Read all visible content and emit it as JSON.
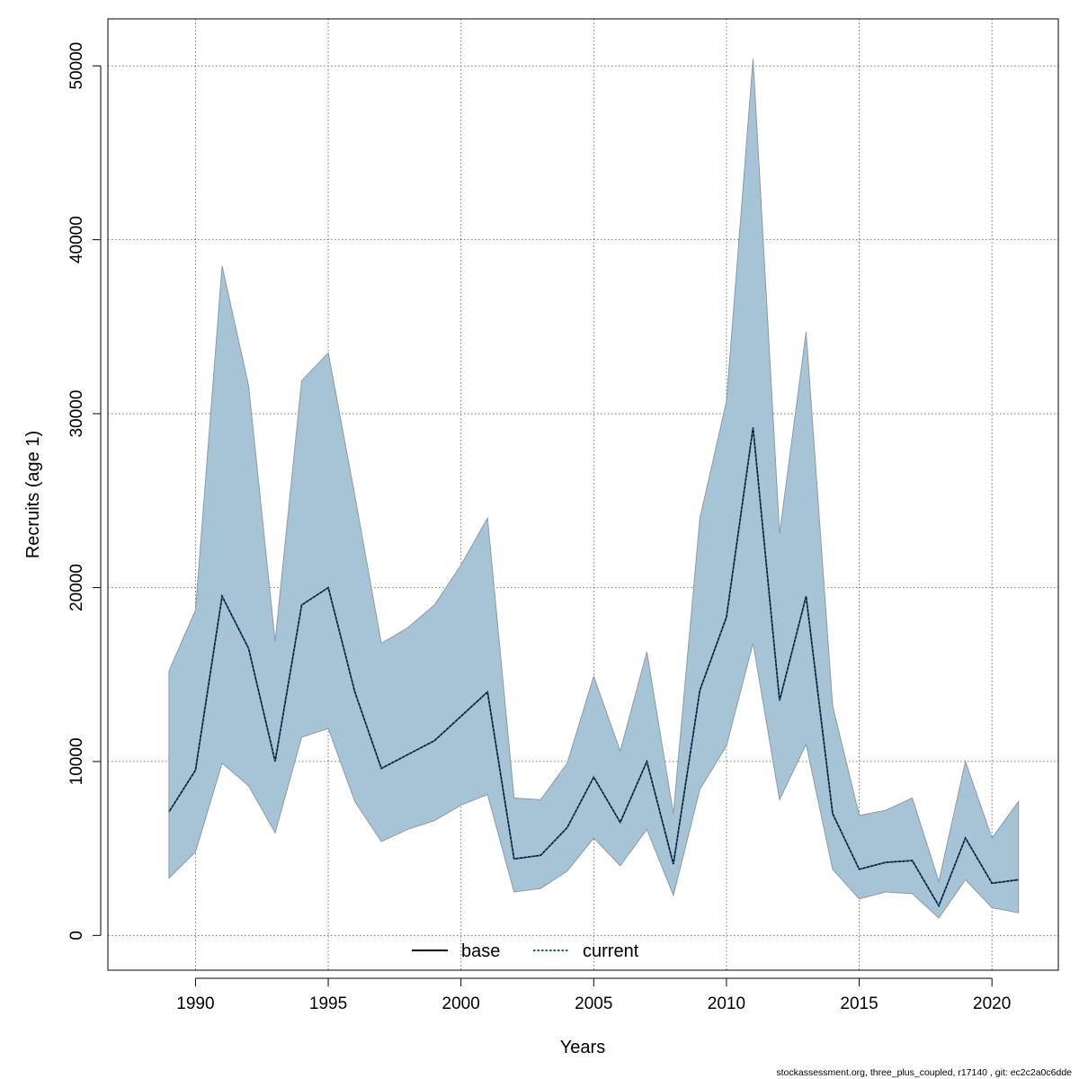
{
  "chart_data": {
    "type": "area",
    "xlabel": "Years",
    "ylabel": "Recruits (age 1)",
    "xlim": [
      1986.7,
      2022.5
    ],
    "ylim": [
      -2000,
      52700
    ],
    "x_ticks": [
      1990,
      1995,
      2000,
      2005,
      2010,
      2015,
      2020
    ],
    "y_ticks": [
      0,
      10000,
      20000,
      30000,
      40000,
      50000
    ],
    "grid": true,
    "legend_position": "bottom-center",
    "legend": [
      {
        "name": "base",
        "style": "solid",
        "color": "#000000"
      },
      {
        "name": "current",
        "style": "dotted",
        "color": "#1f5f8b"
      }
    ],
    "x": [
      1989,
      1990,
      1991,
      1992,
      1993,
      1994,
      1995,
      1996,
      1997,
      1998,
      1999,
      2000,
      2001,
      2002,
      2003,
      2004,
      2005,
      2006,
      2007,
      2008,
      2009,
      2010,
      2011,
      2012,
      2013,
      2014,
      2015,
      2016,
      2017,
      2018,
      2019,
      2020,
      2021
    ],
    "series": [
      {
        "name": "base",
        "values": [
          7100,
          9500,
          19500,
          16500,
          10000,
          19000,
          20000,
          14000,
          9600,
          10400,
          11200,
          12600,
          14000,
          4400,
          4600,
          6200,
          9100,
          6500,
          10000,
          4100,
          14100,
          18300,
          29200,
          13500,
          19500,
          7000,
          3800,
          4200,
          4300,
          1700,
          5600,
          3000,
          3200
        ]
      },
      {
        "name": "current",
        "values": [
          7100,
          9500,
          19500,
          16500,
          10000,
          19000,
          20000,
          14000,
          9600,
          10400,
          11200,
          12600,
          14000,
          4400,
          4600,
          6200,
          9100,
          6500,
          10000,
          4100,
          14100,
          18300,
          29200,
          13500,
          19500,
          7000,
          3800,
          4200,
          4300,
          1700,
          5600,
          3000,
          3200
        ]
      }
    ],
    "interval_upper": [
      15200,
      18700,
      38500,
      31600,
      16900,
      31900,
      33500,
      25300,
      16800,
      17700,
      19000,
      21300,
      24000,
      7900,
      7800,
      9900,
      14900,
      10600,
      16300,
      7000,
      24000,
      30700,
      50400,
      23100,
      34700,
      13200,
      6900,
      7200,
      7900,
      3100,
      10000,
      5600,
      7700
    ],
    "interval_lower": [
      3300,
      4800,
      9900,
      8600,
      5900,
      11400,
      11900,
      7700,
      5400,
      6100,
      6600,
      7500,
      8100,
      2500,
      2700,
      3700,
      5600,
      4000,
      6100,
      2300,
      8400,
      10900,
      16800,
      7800,
      11000,
      3800,
      2100,
      2500,
      2400,
      1000,
      3200,
      1600,
      1300
    ],
    "colors": {
      "band_fill": "#a6c4d5",
      "band_stroke": "#8a9aa6",
      "current_line": "#1f5f8b",
      "base_line": "#000000"
    }
  },
  "footer": "stockassessment.org, three_plus_coupled, r17140 , git: ec2c2a0c6dde"
}
